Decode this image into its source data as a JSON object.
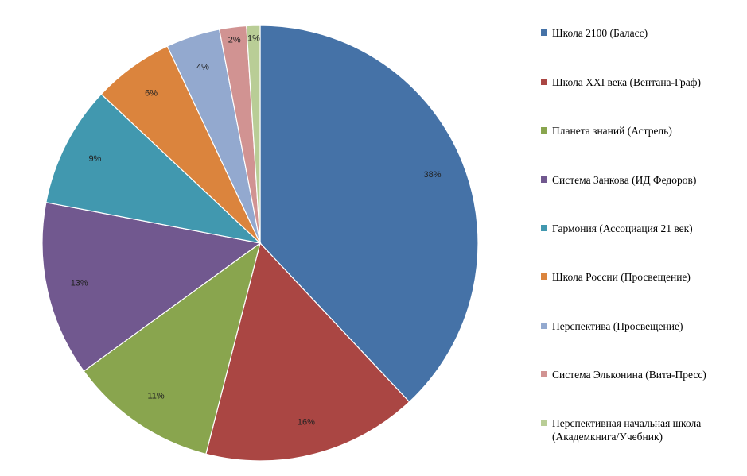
{
  "chart_data": {
    "type": "pie",
    "title": "",
    "legend_position": "right",
    "slices": [
      {
        "label": "Школа 2100 (Баласс)",
        "value": 38,
        "display": "38%",
        "color": "#4572A7"
      },
      {
        "label": "Школа XXI века (Вентана-Граф)",
        "value": 16,
        "display": "16%",
        "color": "#AA4643"
      },
      {
        "label": "Планета знаний (Астрель)",
        "value": 11,
        "display": "11%",
        "color": "#89A54E"
      },
      {
        "label": "Система Занкова (ИД Федоров)",
        "value": 13,
        "display": "13%",
        "color": "#71588F"
      },
      {
        "label": "Гармония (Ассоциация 21 век)",
        "value": 9,
        "display": "9%",
        "color": "#4198AF"
      },
      {
        "label": "Школа России (Просвещение)",
        "value": 6,
        "display": "6%",
        "color": "#DB843D"
      },
      {
        "label": "Перспектива (Просвещение)",
        "value": 4,
        "display": "4%",
        "color": "#93A9CF"
      },
      {
        "label": "Система Эльконина (Вита-Пресс)",
        "value": 2,
        "display": "2%",
        "color": "#D19392"
      },
      {
        "label": "Перспективная начальная школа (Академкнига/Учебник)",
        "value": 1,
        "display": "1%",
        "color": "#B9CD96"
      }
    ]
  }
}
